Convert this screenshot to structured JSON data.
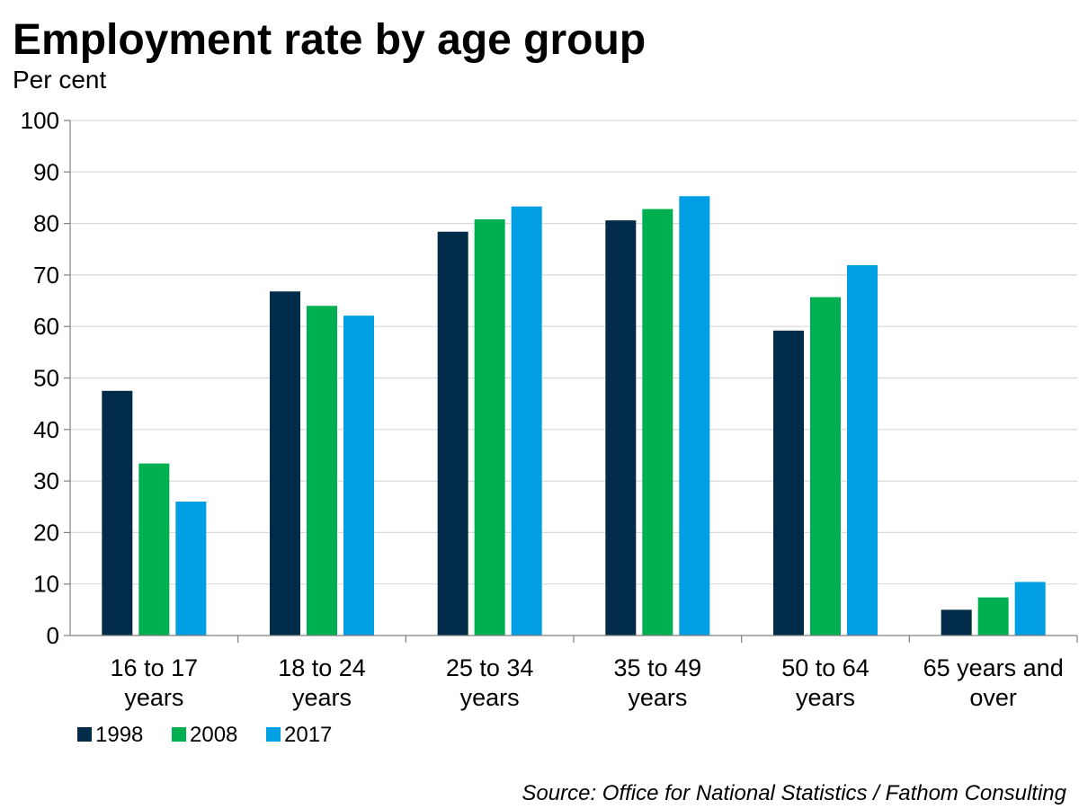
{
  "chart_data": {
    "type": "bar",
    "title": "Employment rate by age group",
    "subtitle": "Per cent",
    "xlabel": "",
    "ylabel": "",
    "ylim": [
      0,
      100
    ],
    "yticks": [
      0,
      10,
      20,
      30,
      40,
      50,
      60,
      70,
      80,
      90,
      100
    ],
    "grid": true,
    "legend_position": "bottom-left",
    "categories": [
      [
        "16 to 17",
        "years"
      ],
      [
        "18 to 24",
        "years"
      ],
      [
        "25 to 34",
        "years"
      ],
      [
        "35 to 49",
        "years"
      ],
      [
        "50 to 64",
        "years"
      ],
      [
        "65 years and",
        "over"
      ]
    ],
    "series": [
      {
        "name": "1998",
        "color": "#002b49",
        "values": [
          47.5,
          66.8,
          78.4,
          80.6,
          59.2,
          5.0
        ]
      },
      {
        "name": "2008",
        "color": "#00b050",
        "values": [
          33.4,
          64.0,
          80.8,
          82.8,
          65.7,
          7.4
        ]
      },
      {
        "name": "2017",
        "color": "#009fe3",
        "values": [
          26.0,
          62.1,
          83.3,
          85.3,
          71.9,
          10.4
        ]
      }
    ],
    "source": "Source: Office for National Statistics / Fathom Consulting"
  }
}
